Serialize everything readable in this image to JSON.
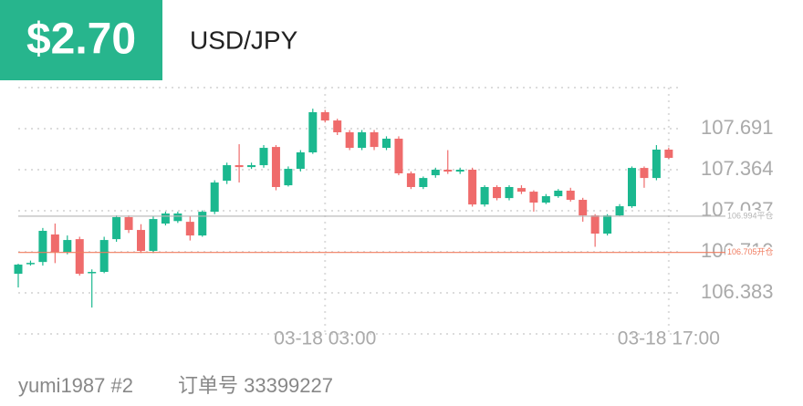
{
  "header": {
    "price": "$2.70",
    "pair": "USD/JPY"
  },
  "chart_data": {
    "type": "candlestick",
    "x": [
      null,
      null,
      null,
      null,
      null,
      null,
      null,
      null,
      null,
      null,
      null,
      null,
      null,
      null,
      null,
      null,
      null,
      null,
      null,
      null,
      null,
      null,
      null,
      null,
      null,
      "03-18 03:00",
      null,
      null,
      null,
      null,
      null,
      null,
      null,
      null,
      null,
      null,
      null,
      null,
      null,
      null,
      null,
      null,
      null,
      null,
      null,
      null,
      null,
      null,
      null,
      null,
      null,
      null,
      null,
      "03-18 17:00"
    ],
    "open": [
      106.535,
      106.615,
      106.629,
      106.848,
      106.709,
      106.811,
      106.54,
      106.55,
      106.811,
      106.986,
      106.884,
      106.717,
      106.935,
      106.955,
      106.949,
      106.84,
      107.029,
      107.276,
      107.4,
      107.385,
      107.4,
      107.545,
      107.24,
      107.371,
      107.502,
      107.822,
      107.756,
      107.662,
      107.538,
      107.662,
      107.538,
      107.611,
      107.335,
      107.226,
      107.32,
      107.364,
      107.349,
      107.364,
      107.087,
      107.226,
      107.138,
      107.218,
      107.189,
      107.102,
      107.153,
      107.197,
      107.124,
      107.0,
      106.855,
      107.0,
      107.073,
      107.378,
      107.298,
      107.524
    ],
    "high": [
      106.615,
      106.64,
      106.9,
      106.935,
      106.84,
      106.83,
      106.57,
      106.83,
      107.0,
      107.0,
      106.93,
      106.99,
      107.03,
      107.03,
      106.99,
      107.04,
      107.28,
      107.42,
      107.567,
      107.42,
      107.56,
      107.56,
      107.39,
      107.52,
      107.85,
      107.84,
      107.77,
      107.68,
      107.68,
      107.68,
      107.63,
      107.63,
      107.35,
      107.31,
      107.38,
      107.52,
      107.38,
      107.38,
      107.24,
      107.24,
      107.24,
      107.24,
      107.2,
      107.17,
      107.21,
      107.22,
      107.14,
      107.01,
      107.01,
      107.09,
      107.39,
      107.39,
      107.56,
      107.54
    ],
    "low": [
      106.426,
      106.6,
      106.6,
      106.62,
      106.69,
      106.52,
      106.266,
      106.54,
      106.79,
      106.86,
      106.7,
      106.7,
      106.92,
      106.94,
      106.8,
      106.83,
      107.01,
      107.25,
      107.262,
      107.37,
      107.38,
      107.2,
      107.23,
      107.35,
      107.49,
      107.74,
      107.64,
      107.52,
      107.52,
      107.52,
      107.52,
      107.32,
      107.21,
      107.21,
      107.3,
      107.33,
      107.33,
      107.07,
      107.07,
      107.12,
      107.12,
      107.17,
      107.03,
      107.09,
      107.14,
      107.11,
      106.95,
      106.75,
      106.84,
      106.99,
      107.06,
      107.22,
      107.28,
      107.45
    ],
    "close": [
      106.608,
      106.622,
      106.877,
      106.709,
      106.804,
      106.535,
      106.55,
      106.804,
      106.986,
      106.884,
      106.717,
      106.971,
      107.015,
      107.015,
      106.84,
      107.029,
      107.262,
      107.4,
      107.385,
      107.4,
      107.538,
      107.226,
      107.371,
      107.502,
      107.822,
      107.756,
      107.662,
      107.538,
      107.662,
      107.545,
      107.611,
      107.335,
      107.226,
      107.298,
      107.364,
      107.349,
      107.364,
      107.087,
      107.226,
      107.138,
      107.226,
      107.189,
      107.102,
      107.153,
      107.197,
      107.124,
      107.0,
      106.855,
      107.0,
      107.073,
      107.378,
      107.298,
      107.524,
      107.458
    ],
    "up_color": "#1bb88f",
    "down_color": "#ef6b6b",
    "ylim": [
      106.056,
      108.018
    ],
    "yticks": [
      106.383,
      {
        "value": 106.71,
        "label": "106.710"
      },
      107.037,
      107.364,
      107.691
    ],
    "lines": [
      {
        "value": 106.994,
        "label": "106.994平仓",
        "color": "#b5b5b5"
      },
      {
        "value": 106.705,
        "label": "106.705开仓",
        "color": "#f07b5f"
      }
    ],
    "grid": true
  },
  "footer": {
    "user": "yumi1987 #2",
    "order": "订单号 33399227"
  }
}
